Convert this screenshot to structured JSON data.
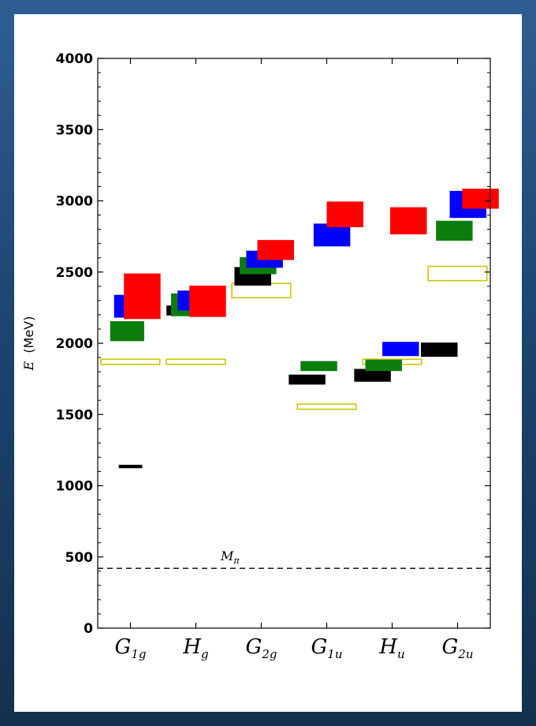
{
  "chart_data": {
    "type": "level-diagram",
    "ylabel_symbol": "E",
    "ylabel_unit": "(MeV)",
    "ylim": [
      0,
      4000
    ],
    "yticks": [
      0,
      500,
      1000,
      1500,
      2000,
      2500,
      3000,
      3500,
      4000
    ],
    "grid": false,
    "categories": [
      {
        "base": "G",
        "sub": "1g"
      },
      {
        "base": "H",
        "sub": "g"
      },
      {
        "base": "G",
        "sub": "2g"
      },
      {
        "base": "G",
        "sub": "1u"
      },
      {
        "base": "H",
        "sub": "u"
      },
      {
        "base": "G",
        "sub": "2u"
      }
    ],
    "reference_line": {
      "label_base": "M",
      "label_sub": "π",
      "y": 420,
      "style": "dashed"
    },
    "colors": {
      "black": "#000000",
      "green": "#0b7d0b",
      "blue": "#0000ff",
      "red": "#ff0000",
      "yellow": "#c8c800"
    },
    "levels": [
      {
        "cat": 0,
        "color": "black",
        "center": 1135,
        "half": 12,
        "offset": 0.0,
        "w": 0.36
      },
      {
        "cat": 0,
        "color": "yellow",
        "center": 1870,
        "half": 18,
        "offset": 0.0,
        "w": 0.9,
        "hollow": true
      },
      {
        "cat": 0,
        "color": "green",
        "center": 2085,
        "half": 70,
        "offset": -0.05,
        "w": 0.52
      },
      {
        "cat": 0,
        "color": "blue",
        "center": 2260,
        "half": 80,
        "offset": -0.04,
        "w": 0.42
      },
      {
        "cat": 0,
        "color": "red",
        "center": 2330,
        "half": 160,
        "offset": 0.18,
        "w": 0.56
      },
      {
        "cat": 1,
        "color": "yellow",
        "center": 1870,
        "half": 18,
        "offset": 0.0,
        "w": 0.9,
        "hollow": true
      },
      {
        "cat": 1,
        "color": "black",
        "center": 2230,
        "half": 35,
        "offset": -0.3,
        "w": 0.3
      },
      {
        "cat": 1,
        "color": "green",
        "center": 2270,
        "half": 80,
        "offset": -0.2,
        "w": 0.36
      },
      {
        "cat": 1,
        "color": "blue",
        "center": 2300,
        "half": 70,
        "offset": -0.1,
        "w": 0.36
      },
      {
        "cat": 1,
        "color": "red",
        "center": 2295,
        "half": 110,
        "offset": 0.18,
        "w": 0.56
      },
      {
        "cat": 2,
        "color": "yellow",
        "center": 2370,
        "half": 50,
        "offset": 0.0,
        "w": 0.9,
        "hollow": true
      },
      {
        "cat": 2,
        "color": "black",
        "center": 2470,
        "half": 65,
        "offset": -0.13,
        "w": 0.56
      },
      {
        "cat": 2,
        "color": "green",
        "center": 2545,
        "half": 60,
        "offset": -0.05,
        "w": 0.56
      },
      {
        "cat": 2,
        "color": "blue",
        "center": 2590,
        "half": 60,
        "offset": 0.05,
        "w": 0.56
      },
      {
        "cat": 2,
        "color": "red",
        "center": 2655,
        "half": 70,
        "offset": 0.22,
        "w": 0.56
      },
      {
        "cat": 3,
        "color": "yellow",
        "center": 1555,
        "half": 18,
        "offset": 0.0,
        "w": 0.9,
        "hollow": true
      },
      {
        "cat": 3,
        "color": "black",
        "center": 1745,
        "half": 35,
        "offset": -0.3,
        "w": 0.56
      },
      {
        "cat": 3,
        "color": "green",
        "center": 1840,
        "half": 35,
        "offset": -0.12,
        "w": 0.56
      },
      {
        "cat": 3,
        "color": "blue",
        "center": 2760,
        "half": 80,
        "offset": 0.08,
        "w": 0.56
      },
      {
        "cat": 3,
        "color": "red",
        "center": 2905,
        "half": 90,
        "offset": 0.28,
        "w": 0.56
      },
      {
        "cat": 4,
        "color": "yellow",
        "center": 1870,
        "half": 18,
        "offset": 0.0,
        "w": 0.9,
        "hollow": true
      },
      {
        "cat": 4,
        "color": "black",
        "center": 1775,
        "half": 45,
        "offset": -0.3,
        "w": 0.56
      },
      {
        "cat": 4,
        "color": "green",
        "center": 1845,
        "half": 40,
        "offset": -0.13,
        "w": 0.56
      },
      {
        "cat": 4,
        "color": "blue",
        "center": 1960,
        "half": 50,
        "offset": 0.13,
        "w": 0.56
      },
      {
        "cat": 4,
        "color": "red",
        "center": 2860,
        "half": 95,
        "offset": 0.25,
        "w": 0.56
      },
      {
        "cat": 5,
        "color": "yellow",
        "center": 2490,
        "half": 50,
        "offset": 0.0,
        "w": 0.9,
        "hollow": true
      },
      {
        "cat": 5,
        "color": "black",
        "center": 1955,
        "half": 50,
        "offset": -0.28,
        "w": 0.56
      },
      {
        "cat": 5,
        "color": "green",
        "center": 2790,
        "half": 70,
        "offset": -0.05,
        "w": 0.56
      },
      {
        "cat": 5,
        "color": "blue",
        "center": 2975,
        "half": 95,
        "offset": 0.16,
        "w": 0.56
      },
      {
        "cat": 5,
        "color": "red",
        "center": 3015,
        "half": 70,
        "offset": 0.35,
        "w": 0.56
      }
    ]
  }
}
